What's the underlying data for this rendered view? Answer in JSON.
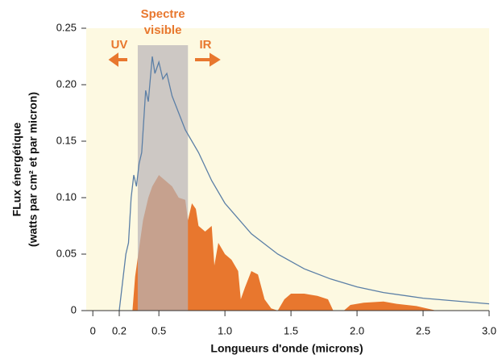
{
  "chart_data": {
    "type": "line-area",
    "xlabel": "Longueurs d'onde (microns)",
    "ylabel": [
      "FLux énergétique",
      "(watts par cm² et par micron)"
    ],
    "annotations": [
      "Spectre",
      "visible",
      "UV",
      "IR"
    ],
    "xlim": [
      -0.05,
      3.0
    ],
    "ylim": [
      0,
      0.25
    ],
    "xticks": [
      0,
      0.2,
      0.5,
      {
        "value": 1,
        "label": "1.0"
      },
      1.5,
      {
        "value": 2,
        "label": "2.0"
      },
      2.5,
      {
        "value": 3,
        "label": "3.0"
      }
    ],
    "yticks": [
      0,
      0.05,
      {
        "value": 0.1,
        "label": "0.10"
      },
      0.15,
      {
        "value": 0.2,
        "label": "0.20"
      },
      0.25
    ],
    "background": "#fdf9e1",
    "shaded_range": {
      "x": [
        0.34,
        0.72
      ],
      "top": 0.235,
      "color": "#b8b4b8"
    },
    "series": [
      {
        "kind": "line",
        "color": "#5b7fa6",
        "x": [
          0.2,
          0.25,
          0.27,
          0.29,
          0.31,
          0.33,
          0.35,
          0.37,
          0.4,
          0.42,
          0.45,
          0.47,
          0.5,
          0.53,
          0.56,
          0.6,
          0.65,
          0.7,
          0.8,
          0.9,
          1.0,
          1.2,
          1.4,
          1.6,
          1.8,
          2.0,
          2.2,
          2.5,
          3.0
        ],
        "values": [
          0,
          0.05,
          0.06,
          0.1,
          0.12,
          0.11,
          0.13,
          0.14,
          0.195,
          0.185,
          0.225,
          0.21,
          0.22,
          0.205,
          0.21,
          0.19,
          0.175,
          0.16,
          0.14,
          0.115,
          0.095,
          0.068,
          0.05,
          0.037,
          0.028,
          0.021,
          0.016,
          0.011,
          0.006
        ]
      },
      {
        "kind": "area",
        "color": "#e8772e",
        "x": [
          0.3,
          0.32,
          0.35,
          0.38,
          0.42,
          0.45,
          0.5,
          0.55,
          0.6,
          0.65,
          0.7,
          0.72,
          0.75,
          0.78,
          0.8,
          0.85,
          0.9,
          0.92,
          0.95,
          1.0,
          1.05,
          1.1,
          1.12,
          1.15,
          1.2,
          1.25,
          1.3,
          1.35,
          1.4,
          1.45,
          1.5,
          1.6,
          1.7,
          1.78,
          1.82,
          1.9,
          1.95,
          2.05,
          2.2,
          2.3,
          2.45,
          2.6,
          3.0
        ],
        "values": [
          0,
          0.03,
          0.055,
          0.08,
          0.1,
          0.11,
          0.12,
          0.115,
          0.11,
          0.1,
          0.098,
          0.08,
          0.095,
          0.09,
          0.075,
          0.07,
          0.075,
          0.04,
          0.06,
          0.05,
          0.045,
          0.035,
          0.01,
          0.02,
          0.035,
          0.032,
          0.01,
          0.002,
          0,
          0.01,
          0.015,
          0.015,
          0.013,
          0.01,
          0,
          0,
          0.005,
          0.007,
          0.008,
          0.006,
          0.004,
          0,
          0
        ]
      }
    ]
  }
}
